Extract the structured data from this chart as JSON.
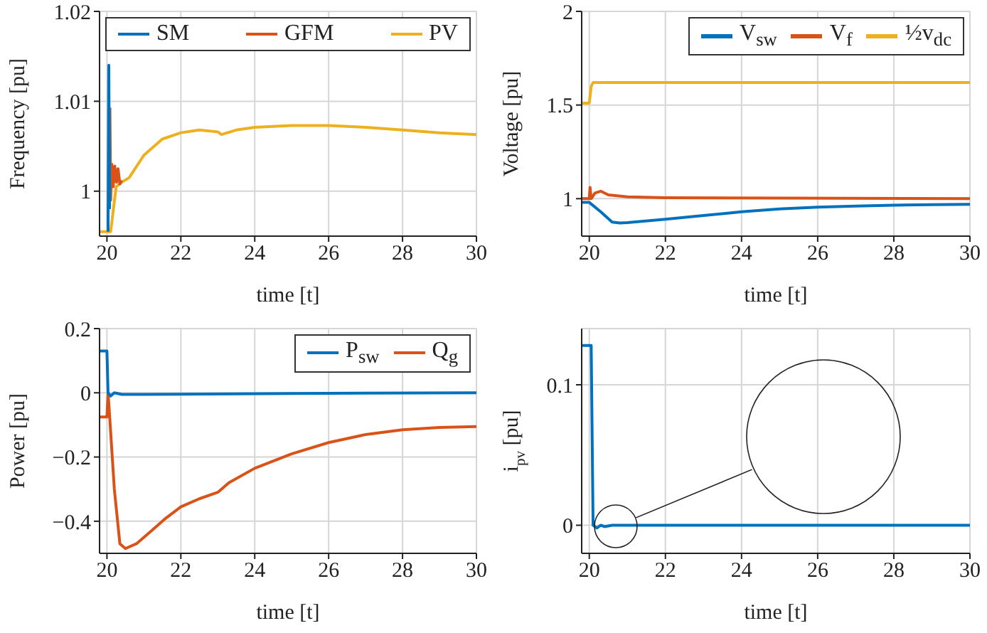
{
  "chart_data": [
    {
      "type": "line",
      "xlabel": "time [t]",
      "ylabel": "Frequency [pu]",
      "xlim": [
        19.8,
        30
      ],
      "xticks": [
        20,
        22,
        24,
        26,
        28,
        30
      ],
      "ylim": [
        0.995,
        1.02
      ],
      "yticks": [
        1,
        1.01,
        1.02
      ],
      "grid": true,
      "legend": "top",
      "marker": "none",
      "line_style": "solid",
      "series": [
        {
          "name": "SM",
          "color": "#0072bd",
          "x": [
            20.03,
            20.05,
            20.07
          ],
          "values": [
            0.9955,
            1.014,
            0.998
          ]
        },
        {
          "name": "GFM",
          "color": "#d95319",
          "x": [
            20.08,
            20.1,
            20.13,
            20.17,
            20.21,
            20.26,
            20.3,
            20.35,
            20.4
          ],
          "values": [
            1.0093,
            0.999,
            1.003,
            1.0005,
            1.0028,
            1.001,
            1.0025,
            1.0008,
            1.0012
          ]
        },
        {
          "name": "PV",
          "color": "#edb120",
          "x": [
            19.8,
            20.1,
            20.25,
            20.4,
            20.6,
            21,
            21.5,
            22,
            22.5,
            23,
            23.1,
            23.5,
            24,
            25,
            26,
            27,
            28,
            29,
            30
          ],
          "values": [
            0.9955,
            0.9955,
            1.0005,
            1.001,
            1.0015,
            1.004,
            1.0058,
            1.0065,
            1.0068,
            1.0066,
            1.0063,
            1.0068,
            1.0071,
            1.0073,
            1.0073,
            1.0071,
            1.0068,
            1.0065,
            1.0063
          ]
        }
      ]
    },
    {
      "type": "line",
      "xlabel": "time [t]",
      "ylabel": "Voltage [pu]",
      "xlim": [
        19.8,
        30
      ],
      "xticks": [
        20,
        22,
        24,
        26,
        28,
        30
      ],
      "ylim": [
        0.8,
        2
      ],
      "yticks": [
        1,
        1.5,
        2
      ],
      "grid": true,
      "legend": "top right",
      "marker": "none",
      "line_style": "solid",
      "series": [
        {
          "name": "V$_{sw}$",
          "color": "#0072bd",
          "x": [
            19.8,
            20.0,
            20.3,
            20.6,
            20.8,
            21,
            22,
            23,
            24,
            25,
            26,
            27,
            28,
            29,
            30
          ],
          "values": [
            0.98,
            0.98,
            0.93,
            0.875,
            0.87,
            0.872,
            0.89,
            0.91,
            0.93,
            0.945,
            0.955,
            0.96,
            0.965,
            0.968,
            0.97
          ]
        },
        {
          "name": "V$_{f}$",
          "color": "#d95319",
          "x": [
            19.8,
            20.0,
            20.02,
            20.05,
            20.15,
            20.3,
            20.5,
            21,
            22,
            30
          ],
          "values": [
            1.0,
            1.0,
            1.06,
            1.0,
            1.03,
            1.04,
            1.02,
            1.01,
            1.005,
            1.0
          ]
        },
        {
          "name": "½v$_{dc}$",
          "color": "#edb120",
          "x": [
            19.8,
            20.0,
            20.05,
            20.1,
            30
          ],
          "values": [
            1.51,
            1.51,
            1.6,
            1.62,
            1.62
          ]
        }
      ]
    },
    {
      "type": "line",
      "xlabel": "time [t]",
      "ylabel": "Power [pu]",
      "xlim": [
        19.8,
        30
      ],
      "xticks": [
        20,
        22,
        24,
        26,
        28,
        30
      ],
      "ylim": [
        -0.5,
        0.2
      ],
      "yticks": [
        -0.4,
        -0.2,
        0,
        0.2
      ],
      "grid": true,
      "legend": "top right",
      "marker": "none",
      "line_style": "solid",
      "series": [
        {
          "name": "P$_{sw}$",
          "color": "#0072bd",
          "x": [
            19.8,
            20.0,
            20.03,
            20.1,
            20.2,
            20.4,
            21,
            25,
            30
          ],
          "values": [
            0.13,
            0.13,
            0.0,
            -0.01,
            0.0,
            -0.005,
            -0.005,
            -0.002,
            0.0
          ]
        },
        {
          "name": "Q$_{g}$",
          "color": "#d95319",
          "x": [
            19.8,
            20.0,
            20.03,
            20.06,
            20.2,
            20.35,
            20.5,
            20.8,
            21.2,
            21.6,
            22,
            22.5,
            23,
            23.3,
            24,
            25,
            26,
            27,
            28,
            29,
            30
          ],
          "values": [
            -0.075,
            -0.075,
            0.0,
            -0.05,
            -0.3,
            -0.47,
            -0.485,
            -0.47,
            -0.43,
            -0.39,
            -0.355,
            -0.33,
            -0.31,
            -0.28,
            -0.235,
            -0.19,
            -0.155,
            -0.13,
            -0.115,
            -0.108,
            -0.105
          ]
        }
      ]
    },
    {
      "type": "line",
      "xlabel": "time [t]",
      "ylabel": "i$_{pv}$ [pu]",
      "xlim": [
        19.8,
        30
      ],
      "xticks": [
        20,
        22,
        24,
        26,
        28,
        30
      ],
      "ylim": [
        -0.02,
        0.14
      ],
      "yticks": [
        0,
        0.1
      ],
      "grid": true,
      "marker": "none",
      "line_style": "solid",
      "series": [
        {
          "color": "#0072bd",
          "x": [
            19.8,
            20.0,
            20.05,
            20.1,
            20.2,
            20.3,
            20.4,
            20.6,
            21,
            30
          ],
          "values": [
            0.128,
            0.128,
            0.128,
            0.0,
            -0.002,
            0.0,
            -0.001,
            0.0,
            0.0,
            0.0
          ]
        }
      ]
    }
  ]
}
